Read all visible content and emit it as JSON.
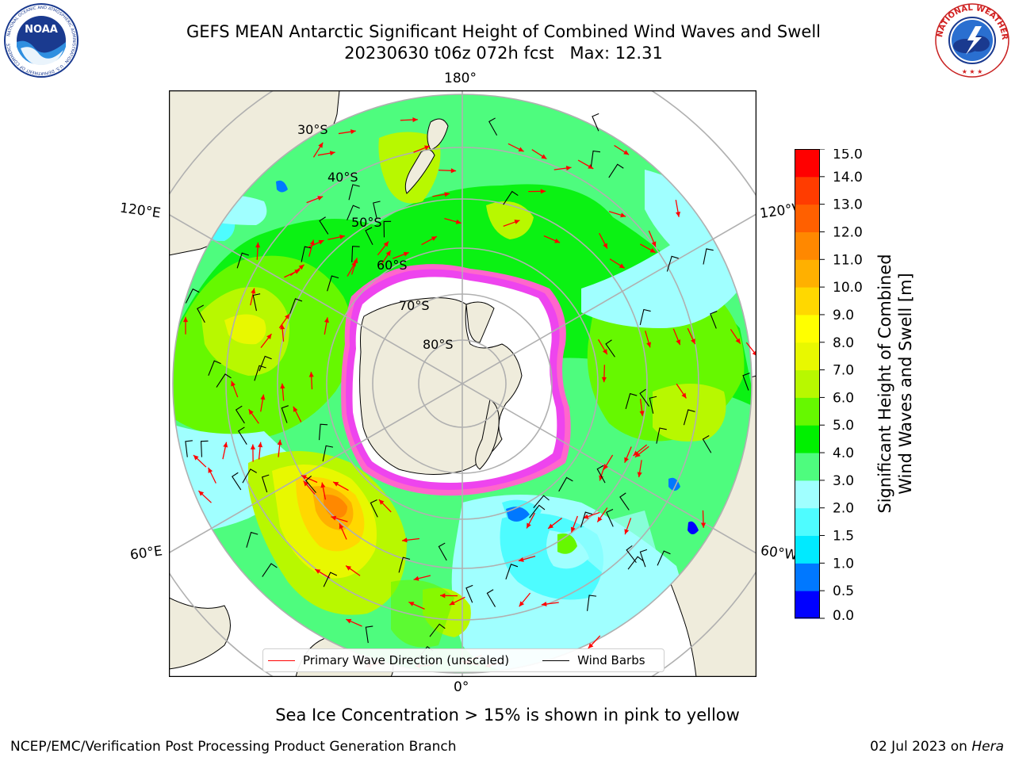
{
  "title": {
    "line1": "GEFS MEAN Antarctic Significant Height of Combined Wind Waves and Swell",
    "run": "20230630 t06z 072h fcst",
    "max": "Max: 12.31"
  },
  "logos": {
    "left": {
      "text": "NOAA",
      "ring_text": "NATIONAL OCEANIC AND ATMOSPHERIC ADMINISTRATION · U.S. DEPARTMENT OF COMMERCE",
      "color": "#1a3a8f"
    },
    "right": {
      "ring_text": "NATIONAL WEATHER SERVICE",
      "color": "#d22020"
    }
  },
  "map": {
    "projection": "south-polar-stereographic",
    "lon_labels": {
      "top": "180°",
      "bottom": "0°",
      "left_upper": "120°E",
      "left_lower": "60°E",
      "right_upper": "120°W",
      "right_lower": "60°W"
    },
    "lat_labels": [
      "30°S",
      "40°S",
      "50°S",
      "60°S",
      "70°S",
      "80°S"
    ],
    "grid_color": "#b0b0b0",
    "land_color": "#efecdc",
    "ice_colors": [
      "#ff66cc",
      "#ee44ee",
      "#ffaa33",
      "#ffe650"
    ]
  },
  "legend": {
    "wave_direction": "Primary Wave Direction (unscaled)",
    "wind_barbs": "Wind Barbs"
  },
  "colorbar": {
    "label_line1": "Significant Height of Combined",
    "label_line2": "Wind Waves and Swell [m]",
    "ticks": [
      "0.0",
      "0.5",
      "1.0",
      "1.5",
      "2.0",
      "3.0",
      "4.0",
      "5.0",
      "6.0",
      "7.0",
      "8.0",
      "9.0",
      "10.0",
      "11.0",
      "12.0",
      "13.0",
      "14.0",
      "15.0"
    ],
    "colors": [
      "#0000ff",
      "#0078ff",
      "#00eaff",
      "#4efcff",
      "#a0ffff",
      "#4efc7e",
      "#00f000",
      "#66f800",
      "#b8f800",
      "#e8f800",
      "#ffff00",
      "#ffd800",
      "#ffb000",
      "#ff8800",
      "#ff6000",
      "#ff3c00",
      "#ff0000"
    ]
  },
  "note": "Sea Ice Concentration > 15% is shown in pink to yellow",
  "footer": {
    "left": "NCEP/EMC/Verification Post Processing Product Generation Branch",
    "right_date": "02 Jul 2023 on",
    "right_host": "Hera"
  }
}
